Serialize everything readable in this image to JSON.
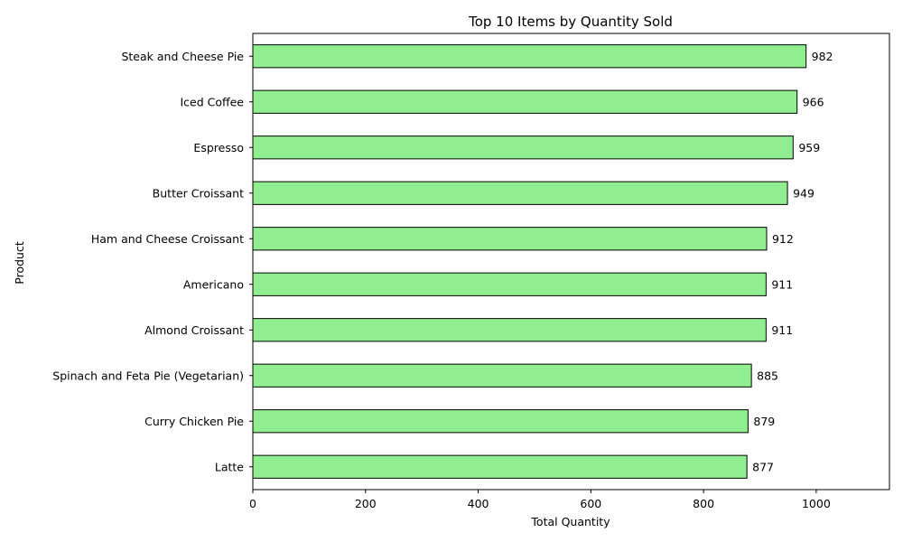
{
  "chart_data": {
    "type": "bar",
    "orientation": "horizontal",
    "title": "Top 10 Items by Quantity Sold",
    "xlabel": "Total Quantity",
    "ylabel": "Product",
    "categories": [
      "Steak and Cheese Pie",
      "Iced Coffee",
      "Espresso",
      "Butter Croissant",
      "Ham and Cheese Croissant",
      "Americano",
      "Almond Croissant",
      "Spinach and Feta Pie (Vegetarian)",
      "Curry Chicken Pie",
      "Latte"
    ],
    "values": [
      982,
      966,
      959,
      949,
      912,
      911,
      911,
      885,
      879,
      877
    ],
    "data_labels": [
      "982",
      "966",
      "959",
      "949",
      "912",
      "911",
      "911",
      "885",
      "879",
      "877"
    ],
    "xlim": [
      0,
      1130
    ],
    "xticks": [
      0,
      200,
      400,
      600,
      800,
      1000
    ],
    "xtick_labels": [
      "0",
      "200",
      "400",
      "600",
      "800",
      "1000"
    ],
    "grid": false,
    "legend": "none",
    "colors": {
      "bar_fill": "#90ee90",
      "bar_edge": "#000000",
      "axis": "#000000",
      "text": "#000000"
    }
  }
}
